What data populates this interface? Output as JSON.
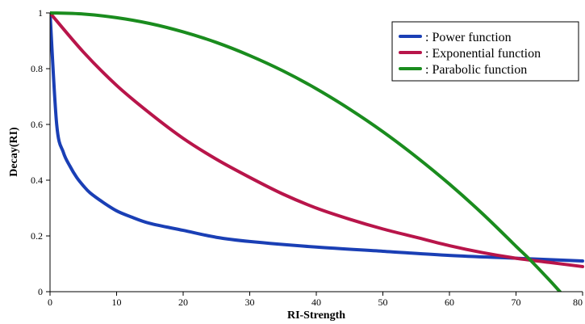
{
  "chart_data": {
    "type": "line",
    "xlabel": "RI-Strength",
    "ylabel": "Decay(RI)",
    "xlim": [
      0,
      80
    ],
    "ylim": [
      0,
      1
    ],
    "x_ticks": [
      0,
      10,
      20,
      30,
      40,
      50,
      60,
      70,
      80
    ],
    "y_ticks": [
      0,
      0.2,
      0.4,
      0.6,
      0.8,
      1
    ],
    "x_tick_labels": [
      "0",
      "10",
      "20",
      "30",
      "40",
      "50",
      "60",
      "70",
      "80"
    ],
    "y_tick_labels": [
      "0",
      "0.2",
      "0.4",
      "0.6",
      "0.8",
      "1"
    ],
    "grid": false,
    "legend_position": "top-right",
    "series": [
      {
        "name": ": Power function",
        "color": "#1a3fb5",
        "x": [
          0,
          1,
          2,
          3,
          4,
          5,
          6,
          8,
          10,
          12,
          15,
          20,
          25,
          30,
          40,
          50,
          60,
          70,
          80
        ],
        "y": [
          1,
          0.6,
          0.5,
          0.45,
          0.41,
          0.38,
          0.355,
          0.32,
          0.29,
          0.27,
          0.245,
          0.22,
          0.195,
          0.18,
          0.16,
          0.145,
          0.13,
          0.12,
          0.11
        ]
      },
      {
        "name": ": Exponential function",
        "color": "#b8154a",
        "x": [
          0,
          5,
          10,
          15,
          20,
          25,
          30,
          35,
          40,
          45,
          50,
          55,
          60,
          65,
          70,
          75,
          80
        ],
        "y": [
          1,
          0.86,
          0.74,
          0.64,
          0.55,
          0.475,
          0.41,
          0.35,
          0.3,
          0.26,
          0.225,
          0.195,
          0.165,
          0.14,
          0.12,
          0.105,
          0.09
        ]
      },
      {
        "name": ": Parabolic function",
        "color": "#1a8c1e",
        "x": [
          0,
          5,
          10,
          15,
          20,
          25,
          30,
          35,
          40,
          45,
          50,
          55,
          60,
          65,
          70,
          72,
          75,
          76.6
        ],
        "y": [
          1,
          0.996,
          0.983,
          0.962,
          0.932,
          0.894,
          0.847,
          0.792,
          0.728,
          0.655,
          0.574,
          0.484,
          0.386,
          0.279,
          0.163,
          0.117,
          0.042,
          0
        ]
      }
    ]
  }
}
